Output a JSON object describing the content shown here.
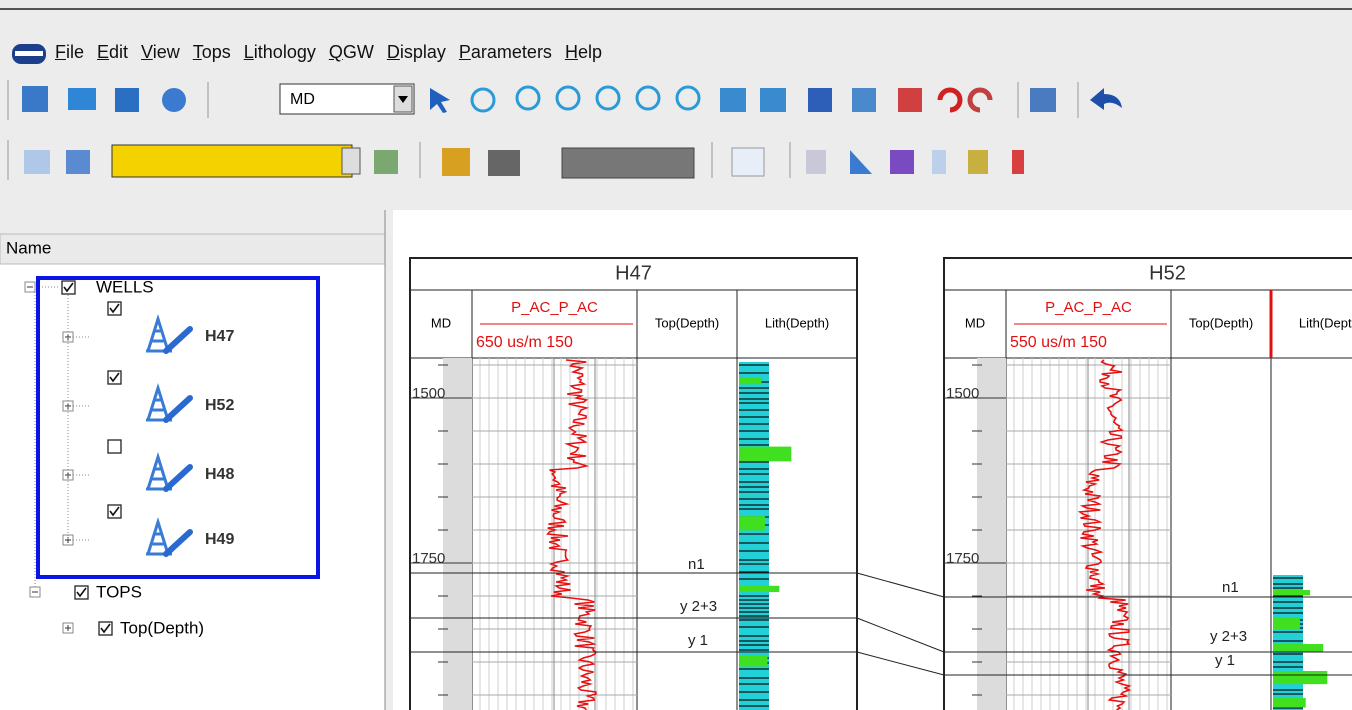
{
  "menu": [
    "File",
    "Edit",
    "View",
    "Tops",
    "Lithology",
    "QGW",
    "Display",
    "Parameters",
    "Help"
  ],
  "toolbar": {
    "depth_combo": "MD"
  },
  "tree": {
    "header": "Name",
    "groups": [
      {
        "label": "WELLS",
        "checked": true,
        "items": [
          {
            "label": "H47",
            "checked": true
          },
          {
            "label": "H52",
            "checked": true
          },
          {
            "label": "H48",
            "checked": false
          },
          {
            "label": "H49",
            "checked": true
          }
        ]
      },
      {
        "label": "TOPS",
        "checked": true,
        "items": [
          {
            "label": "Top(Depth)",
            "checked": true
          }
        ]
      }
    ]
  },
  "wells": [
    {
      "name": "H47",
      "md": "MD",
      "curve": "P_AC_P_AC",
      "scale": "650 us/m 150",
      "tops_col": "Top(Depth)",
      "lith_col": "Lith(Depth)",
      "depths": [
        1500,
        1750
      ],
      "tops": [
        "n1",
        "y 2+3",
        "y 1"
      ]
    },
    {
      "name": "H52",
      "md": "MD",
      "curve": "P_AC_P_AC",
      "scale": "550 us/m 150",
      "tops_col": "Top(Depth)",
      "lith_col": "Lith(Depth)",
      "depths": [
        1500,
        1750
      ],
      "tops": [
        "n1",
        "y 2+3",
        "y 1"
      ]
    }
  ]
}
